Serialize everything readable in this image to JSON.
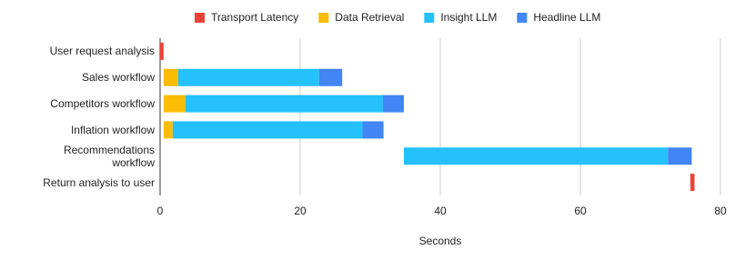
{
  "chart_data": {
    "type": "bar",
    "orientation": "horizontal",
    "stacked": true,
    "categories": [
      "User request analysis",
      "Sales workflow",
      "Competitors workflow",
      "Inflation workflow",
      "Recommendations workflow",
      "Return analysis to user"
    ],
    "starts": [
      0,
      0.5,
      0.5,
      0.5,
      34.8,
      75.7
    ],
    "series": [
      {
        "name": "Transport Latency",
        "color": "#ea4335",
        "values": [
          0.5,
          null,
          null,
          null,
          null,
          0.6
        ]
      },
      {
        "name": "Data Retrieval",
        "color": "#fbbc04",
        "values": [
          null,
          2.1,
          3.1,
          1.3,
          null,
          null
        ]
      },
      {
        "name": "Insight LLM",
        "color": "#24c1fd",
        "values": [
          null,
          20.1,
          28.2,
          27.1,
          37.7,
          null
        ]
      },
      {
        "name": "Headline LLM",
        "color": "#4285f4",
        "values": [
          null,
          3.3,
          3.0,
          3.0,
          3.4,
          null
        ]
      }
    ],
    "x_label": "Seconds",
    "xlim": [
      0,
      80
    ],
    "xticks": [
      0,
      20,
      40,
      60,
      80
    ],
    "grid": true,
    "legend": "top"
  }
}
